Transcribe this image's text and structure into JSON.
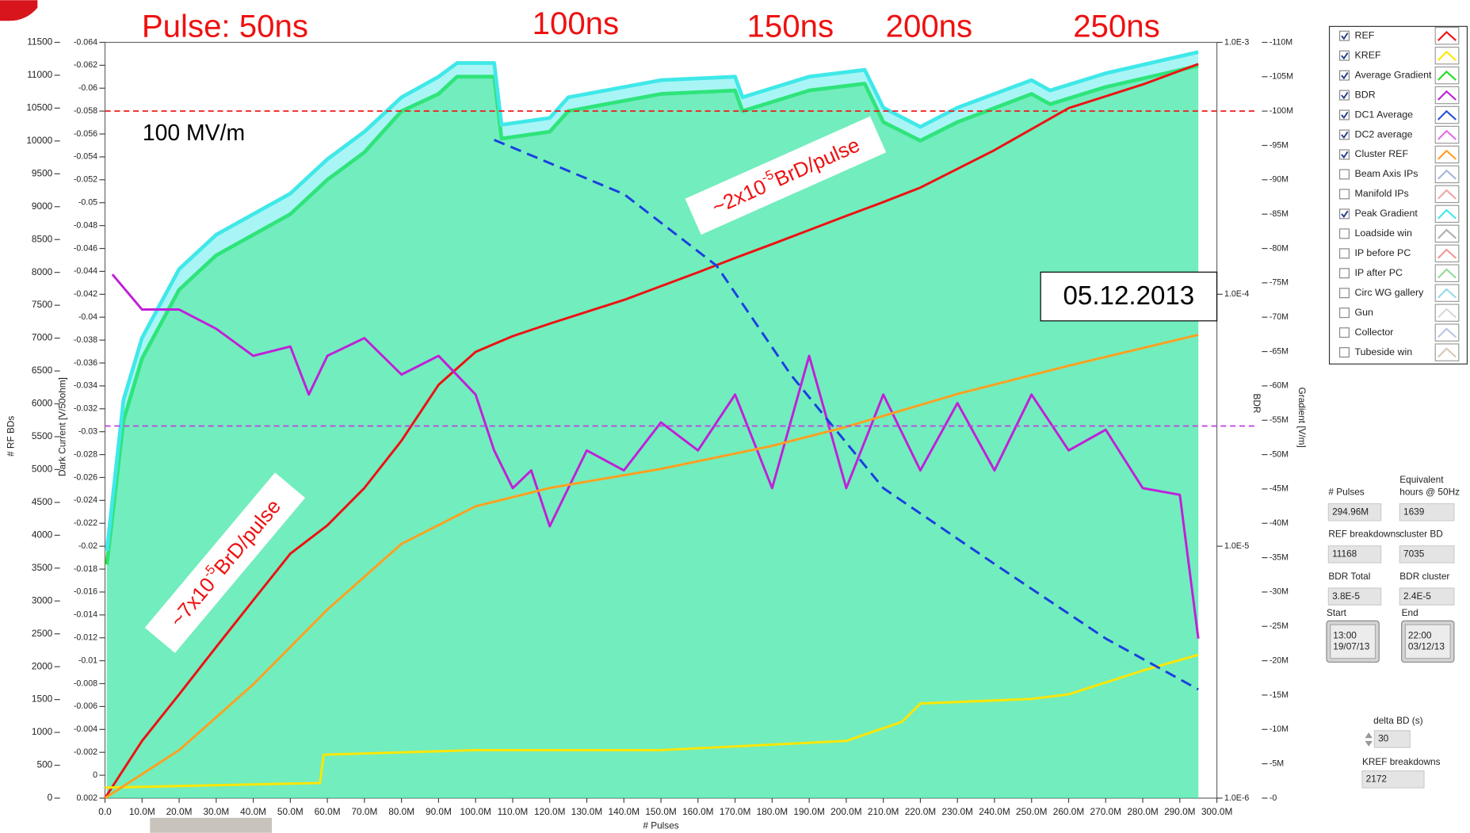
{
  "chart_data": {
    "type": "line",
    "annotations": {
      "pulse_labels": [
        "Pulse: 50ns",
        "100ns",
        "150ns",
        "200ns",
        "250ns"
      ],
      "gradient_note": "100 MV/m",
      "date": "05.12.2013",
      "rate_late": {
        "before": "~2x10",
        "superscript": "-5",
        "after": "BrD/pulse"
      },
      "rate_early": {
        "before": "~7x10",
        "superscript": "-5",
        "after": "BrD/pulse"
      }
    },
    "x_label": "# Pulses",
    "xlim": [
      0,
      300000000
    ],
    "xticks": [
      {
        "value": 0,
        "label": "0.0"
      },
      {
        "value": 10000000,
        "label": "10.0M"
      },
      {
        "value": 20000000,
        "label": "20.0M"
      },
      {
        "value": 30000000,
        "label": "30.0M"
      },
      {
        "value": 40000000,
        "label": "40.0M"
      },
      {
        "value": 50000000,
        "label": "50.0M"
      },
      {
        "value": 60000000,
        "label": "60.0M"
      },
      {
        "value": 70000000,
        "label": "70.0M"
      },
      {
        "value": 80000000,
        "label": "80.0M"
      },
      {
        "value": 90000000,
        "label": "90.0M"
      },
      {
        "value": 100000000,
        "label": "100.0M"
      },
      {
        "value": 110000000,
        "label": "110.0M"
      },
      {
        "value": 120000000,
        "label": "120.0M"
      },
      {
        "value": 130000000,
        "label": "130.0M"
      },
      {
        "value": 140000000,
        "label": "140.0M"
      },
      {
        "value": 150000000,
        "label": "150.0M"
      },
      {
        "value": 160000000,
        "label": "160.0M"
      },
      {
        "value": 170000000,
        "label": "170.0M"
      },
      {
        "value": 180000000,
        "label": "180.0M"
      },
      {
        "value": 190000000,
        "label": "190.0M"
      },
      {
        "value": 200000000,
        "label": "200.0M"
      },
      {
        "value": 210000000,
        "label": "210.0M"
      },
      {
        "value": 220000000,
        "label": "220.0M"
      },
      {
        "value": 230000000,
        "label": "230.0M"
      },
      {
        "value": 240000000,
        "label": "240.0M"
      },
      {
        "value": 250000000,
        "label": "250.0M"
      },
      {
        "value": 260000000,
        "label": "260.0M"
      },
      {
        "value": 270000000,
        "label": "270.0M"
      },
      {
        "value": 280000000,
        "label": "280.0M"
      },
      {
        "value": 290000000,
        "label": "290.0M"
      },
      {
        "value": 300000000,
        "label": "300.0M"
      }
    ],
    "y_axes": {
      "bd": {
        "label": "# RF BDs",
        "lim": [
          0,
          11500
        ],
        "ticks": [
          0,
          500,
          1000,
          1500,
          2000,
          2500,
          3000,
          3500,
          4000,
          4500,
          5000,
          5500,
          6000,
          6500,
          7000,
          7500,
          8000,
          8500,
          9000,
          9500,
          10000,
          10500,
          11000,
          11500
        ]
      },
      "dark_current": {
        "label": "Dark Current [V/50ohm]",
        "lim": [
          0.002,
          -0.064
        ],
        "ticks": [
          -0.064,
          -0.062,
          -0.06,
          -0.058,
          -0.056,
          -0.054,
          -0.052,
          -0.05,
          -0.048,
          -0.046,
          -0.044,
          -0.042,
          -0.04,
          -0.038,
          -0.036,
          -0.034,
          -0.032,
          -0.03,
          -0.028,
          -0.026,
          -0.024,
          -0.022,
          -0.02,
          -0.018,
          -0.016,
          -0.014,
          -0.012,
          -0.01,
          -0.008,
          -0.006,
          -0.004,
          -0.002,
          0,
          0.002
        ]
      },
      "bdr": {
        "label": "BDR",
        "log": true,
        "lim": [
          1e-06,
          0.001
        ],
        "ticks": [
          {
            "value": 0.001,
            "label": "1.0E-3"
          },
          {
            "value": 0.0001,
            "label": "1.0E-4"
          },
          {
            "value": 1e-05,
            "label": "1.0E-5"
          },
          {
            "value": 1e-06,
            "label": "1.0E-6"
          }
        ]
      },
      "gradient": {
        "label": "Gradient [V/m]",
        "lim": [
          0,
          -110000000
        ],
        "ticks": [
          {
            "value": -110000000,
            "label": "-110M"
          },
          {
            "value": -105000000,
            "label": "-105M"
          },
          {
            "value": -100000000,
            "label": "-100M"
          },
          {
            "value": -95000000,
            "label": "-95M"
          },
          {
            "value": -90000000,
            "label": "-90M"
          },
          {
            "value": -85000000,
            "label": "-85M"
          },
          {
            "value": -80000000,
            "label": "-80M"
          },
          {
            "value": -75000000,
            "label": "-75M"
          },
          {
            "value": -70000000,
            "label": "-70M"
          },
          {
            "value": -65000000,
            "label": "-65M"
          },
          {
            "value": -60000000,
            "label": "-60M"
          },
          {
            "value": -55000000,
            "label": "-55M"
          },
          {
            "value": -50000000,
            "label": "-50M"
          },
          {
            "value": -45000000,
            "label": "-45M"
          },
          {
            "value": -40000000,
            "label": "-40M"
          },
          {
            "value": -35000000,
            "label": "-35M"
          },
          {
            "value": -30000000,
            "label": "-30M"
          },
          {
            "value": -25000000,
            "label": "-25M"
          },
          {
            "value": -20000000,
            "label": "-20M"
          },
          {
            "value": -15000000,
            "label": "-15M"
          },
          {
            "value": -10000000,
            "label": "-10M"
          },
          {
            "value": -5000000,
            "label": "-5M"
          },
          {
            "value": 0,
            "label": "-0"
          }
        ]
      }
    },
    "reference_lines": [
      {
        "axis": "gradient",
        "value": -100000000,
        "color": "#ee1c1c"
      },
      {
        "axis": "bdr",
        "value": 3e-05,
        "color": "#c040e0"
      }
    ],
    "fit_line": {
      "axis": "bdr",
      "color": "#1a3fe0",
      "x": [
        105000000,
        140000000,
        165000000,
        185000000,
        210000000,
        240000000,
        270000000,
        295000000
      ],
      "values": [
        0.00041,
        0.00025,
        0.00013,
        4.8e-05,
        1.7e-05,
        8.5e-06,
        4.3e-06,
        2.7e-06
      ]
    },
    "plots": [
      {
        "name": "REF",
        "checked": true,
        "color": "#ee1111",
        "axis": "bd",
        "x": [
          0,
          10000000,
          20000000,
          30000000,
          40000000,
          50000000,
          60000000,
          70000000,
          80000000,
          90000000,
          100000000,
          110000000,
          120000000,
          140000000,
          160000000,
          170000000,
          180000000,
          200000000,
          210000000,
          220000000,
          240000000,
          260000000,
          280000000,
          295000000
        ],
        "values": [
          0,
          870,
          1580,
          2300,
          3010,
          3720,
          4150,
          4720,
          5440,
          6290,
          6790,
          7030,
          7220,
          7580,
          8000,
          8220,
          8430,
          8860,
          9070,
          9290,
          9860,
          10500,
          10860,
          11170
        ]
      },
      {
        "name": "KREF",
        "checked": true,
        "color": "#ffe600",
        "axis": "bd",
        "x": [
          0,
          58000000,
          59000000,
          100000000,
          150000000,
          200000000,
          215000000,
          220000000,
          250000000,
          260000000,
          280000000,
          295000000
        ],
        "values": [
          160,
          230,
          660,
          730,
          730,
          870,
          1160,
          1440,
          1510,
          1580,
          1940,
          2180
        ]
      },
      {
        "name": "Average Gradient",
        "checked": true,
        "color": "#22e022",
        "axis": "gradient",
        "area": true,
        "x": [
          500000,
          5000000,
          10000000,
          20000000,
          30000000,
          40000000,
          50000000,
          60000000,
          70000000,
          80000000,
          90000000,
          95000000,
          105000000,
          107000000,
          120000000,
          125000000,
          150000000,
          170000000,
          172000000,
          190000000,
          205000000,
          210000000,
          220000000,
          230000000,
          250000000,
          255000000,
          270000000,
          295000000
        ],
        "values": [
          -34000000,
          -55000000,
          -64000000,
          -74000000,
          -79000000,
          -82000000,
          -85000000,
          -90000000,
          -94000000,
          -100000000,
          -102500000,
          -105000000,
          -105000000,
          -96000000,
          -97000000,
          -100000000,
          -102500000,
          -103000000,
          -100000000,
          -103000000,
          -104000000,
          -98400000,
          -95700000,
          -98400000,
          -102500000,
          -101000000,
          -103500000,
          -106600000
        ]
      },
      {
        "name": "BDR",
        "checked": true,
        "color": "#c020d8",
        "axis": "bdr",
        "x": [
          2000000,
          10000000,
          20000000,
          30000000,
          40000000,
          50000000,
          55000000,
          60000000,
          70000000,
          80000000,
          90000000,
          100000000,
          105000000,
          110000000,
          115000000,
          120000000,
          125000000,
          130000000,
          140000000,
          150000000,
          160000000,
          170000000,
          180000000,
          190000000,
          200000000,
          210000000,
          220000000,
          230000000,
          240000000,
          250000000,
          260000000,
          270000000,
          280000000,
          290000000,
          295000000
        ],
        "values": [
          0.00012,
          8.7e-05,
          8.7e-05,
          7.3e-05,
          5.7e-05,
          6.2e-05,
          4e-05,
          5.7e-05,
          6.7e-05,
          4.8e-05,
          5.7e-05,
          4e-05,
          2.4e-05,
          1.7e-05,
          2e-05,
          1.2e-05,
          1.7e-05,
          2.4e-05,
          2e-05,
          3.1e-05,
          2.4e-05,
          4e-05,
          1.7e-05,
          5.7e-05,
          1.7e-05,
          4e-05,
          2e-05,
          3.7e-05,
          2e-05,
          4e-05,
          2.4e-05,
          2.9e-05,
          1.7e-05,
          1.6e-05,
          4.3e-06
        ]
      },
      {
        "name": "DC1 Average",
        "checked": true,
        "color": "#2a50d8"
      },
      {
        "name": "DC2 average",
        "checked": true,
        "color": "#e070e8"
      },
      {
        "name": "Cluster REF",
        "checked": true,
        "color": "#ffa020",
        "axis": "bd",
        "x": [
          0,
          20000000,
          40000000,
          60000000,
          80000000,
          100000000,
          120000000,
          150000000,
          180000000,
          200000000,
          230000000,
          260000000,
          295000000
        ],
        "values": [
          0,
          730,
          1730,
          2870,
          3870,
          4440,
          4720,
          5010,
          5360,
          5650,
          6150,
          6580,
          7050
        ]
      },
      {
        "name": "Beam Axis IPs",
        "checked": false,
        "color": "#a8b8d8"
      },
      {
        "name": "Manifold IPs",
        "checked": false,
        "color": "#f0a8a8"
      },
      {
        "name": "Peak Gradient",
        "checked": true,
        "color": "#40e8e8",
        "axis": "gradient",
        "area": true,
        "x": [
          500000,
          5000000,
          10000000,
          20000000,
          30000000,
          40000000,
          50000000,
          60000000,
          70000000,
          80000000,
          90000000,
          95000000,
          105000000,
          107000000,
          120000000,
          125000000,
          150000000,
          170000000,
          172000000,
          190000000,
          205000000,
          210000000,
          220000000,
          230000000,
          250000000,
          255000000,
          270000000,
          295000000
        ],
        "values": [
          -36000000,
          -58000000,
          -67000000,
          -77000000,
          -82000000,
          -85000000,
          -88000000,
          -93000000,
          -97000000,
          -102000000,
          -105000000,
          -107000000,
          -107000000,
          -98000000,
          -99000000,
          -102000000,
          -104500000,
          -105000000,
          -102000000,
          -105000000,
          -106000000,
          -100500000,
          -97700000,
          -100500000,
          -104500000,
          -103000000,
          -105500000,
          -108600000
        ]
      },
      {
        "name": "Loadside win",
        "checked": false,
        "color": "#b0b0b0"
      },
      {
        "name": "IP before PC",
        "checked": false,
        "color": "#f09898"
      },
      {
        "name": "IP after PC",
        "checked": false,
        "color": "#98d898"
      },
      {
        "name": "Circ WG gallery",
        "checked": false,
        "color": "#98d8e8"
      },
      {
        "name": "Gun",
        "checked": false,
        "color": "#d8d8d8"
      },
      {
        "name": "Collector",
        "checked": false,
        "color": "#b8c8e8"
      },
      {
        "name": "Tubeside win",
        "checked": false,
        "color": "#d8c8b8"
      }
    ],
    "indicators": [
      {
        "label": [
          "# Pulses"
        ],
        "value": [
          "294.96M"
        ]
      },
      {
        "label": [
          "Equivalent",
          "hours @ 50Hz"
        ],
        "value": [
          "1639"
        ]
      },
      {
        "label": [
          "REF breakdowns"
        ],
        "value": [
          "11168"
        ]
      },
      {
        "label": [
          "cluster BD"
        ],
        "value": [
          "7035"
        ]
      },
      {
        "label": [
          "BDR Total"
        ],
        "value": [
          "3.8E-5"
        ]
      },
      {
        "label": [
          "BDR cluster"
        ],
        "value": [
          "2.4E-5"
        ]
      },
      {
        "label": [
          "Start"
        ],
        "value": [
          "13:00",
          "19/07/13"
        ]
      },
      {
        "label": [
          "End"
        ],
        "value": [
          "22:00",
          "03/12/13"
        ]
      },
      {
        "label": [
          "delta BD (s)"
        ],
        "value": [
          "30"
        ]
      },
      {
        "label": [
          "KREF breakdowns"
        ],
        "value": [
          "2172"
        ]
      }
    ]
  }
}
